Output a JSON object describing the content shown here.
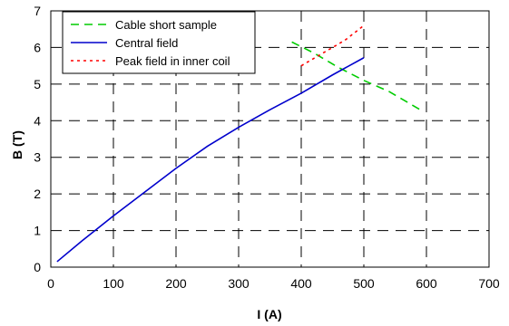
{
  "chart_data": {
    "type": "line",
    "xlabel": "I (A)",
    "ylabel": "B (T)",
    "xlim": [
      0,
      700
    ],
    "ylim": [
      0,
      7
    ],
    "x_ticks": [
      "0",
      "100",
      "200",
      "300",
      "400",
      "500",
      "600",
      "700"
    ],
    "y_ticks": [
      "0",
      "1",
      "2",
      "3",
      "4",
      "5",
      "6",
      "7"
    ],
    "grid": true,
    "legend_position": "top-left",
    "series": [
      {
        "name": "Cable short sample",
        "color": "#00cc00",
        "style": "dashed",
        "x": [
          385,
          420,
          460,
          500,
          540,
          575,
          595
        ],
        "y": [
          6.15,
          5.85,
          5.45,
          5.1,
          4.8,
          4.45,
          4.25
        ]
      },
      {
        "name": "Central field",
        "color": "#0000cc",
        "style": "solid",
        "x": [
          10,
          50,
          100,
          150,
          200,
          250,
          300,
          350,
          400,
          450,
          500
        ],
        "y": [
          0.15,
          0.72,
          1.4,
          2.05,
          2.7,
          3.3,
          3.82,
          4.3,
          4.75,
          5.25,
          5.72
        ]
      },
      {
        "name": "Peak field in inner coil",
        "color": "#ff0000",
        "style": "dotted",
        "x": [
          400,
          440,
          470,
          500
        ],
        "y": [
          5.5,
          5.9,
          6.2,
          6.6
        ]
      }
    ]
  }
}
